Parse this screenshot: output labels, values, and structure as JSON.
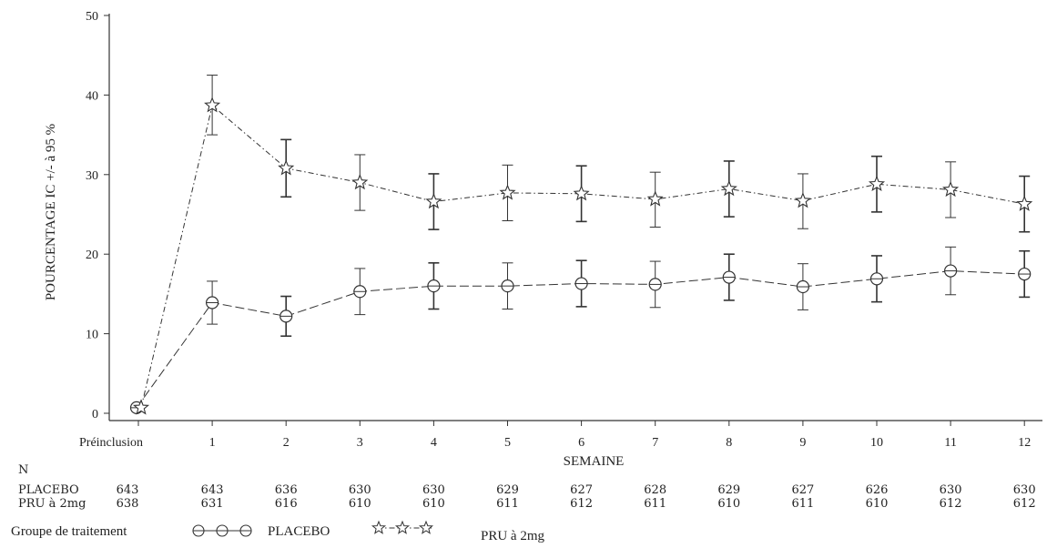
{
  "chart_data": {
    "type": "line",
    "ylabel": "POURCENTAGE IC +/- à 95 %",
    "xlabel": "SEMAINE",
    "ylim": [
      0,
      50
    ],
    "yticks": [
      0,
      10,
      20,
      30,
      40,
      50
    ],
    "x": [
      0,
      1,
      2,
      3,
      4,
      5,
      6,
      7,
      8,
      9,
      10,
      11,
      12
    ],
    "categories": [
      "Préinclusion",
      "1",
      "2",
      "3",
      "4",
      "5",
      "6",
      "7",
      "8",
      "9",
      "10",
      "11",
      "12"
    ],
    "grid": false,
    "series": [
      {
        "name": "PLACEBO",
        "marker": "circle",
        "line_style": "long-dash",
        "values": [
          0.7,
          13.9,
          12.2,
          15.3,
          16.0,
          16.0,
          16.3,
          16.2,
          17.1,
          15.9,
          16.9,
          17.9,
          17.5
        ],
        "ci_lower": [
          0.5,
          11.2,
          9.7,
          12.4,
          13.1,
          13.1,
          13.4,
          13.3,
          14.2,
          13.0,
          14.0,
          14.9,
          14.6
        ],
        "ci_upper": [
          0.9,
          16.6,
          14.7,
          18.2,
          18.9,
          18.9,
          19.2,
          19.1,
          20.0,
          18.8,
          19.8,
          20.9,
          20.4
        ]
      },
      {
        "name": "PRU à 2mg",
        "marker": "star",
        "line_style": "dash-dot",
        "values": [
          0.7,
          38.7,
          30.8,
          29.0,
          26.6,
          27.7,
          27.6,
          26.9,
          28.2,
          26.7,
          28.8,
          28.1,
          26.3
        ],
        "ci_lower": [
          0.5,
          35.0,
          27.2,
          25.5,
          23.1,
          24.2,
          24.1,
          23.4,
          24.7,
          23.2,
          25.3,
          24.6,
          22.8
        ],
        "ci_upper": [
          0.9,
          42.5,
          34.4,
          32.5,
          30.1,
          31.2,
          31.1,
          30.3,
          31.7,
          30.1,
          32.3,
          31.6,
          29.8
        ]
      }
    ]
  },
  "n_table": {
    "header": "N",
    "rows": [
      {
        "label": "PLACEBO",
        "values": [
          "643",
          "643",
          "636",
          "630",
          "630",
          "629",
          "627",
          "628",
          "629",
          "627",
          "626",
          "630",
          "630"
        ]
      },
      {
        "label": "PRU à 2mg",
        "values": [
          "638",
          "631",
          "616",
          "610",
          "610",
          "611",
          "612",
          "611",
          "610",
          "611",
          "610",
          "612",
          "612"
        ]
      }
    ]
  },
  "legend": {
    "title": "Groupe de traitement",
    "items": [
      {
        "label": "PLACEBO",
        "marker": "circle"
      },
      {
        "label": "PRU à 2mg",
        "marker": "star"
      }
    ]
  }
}
